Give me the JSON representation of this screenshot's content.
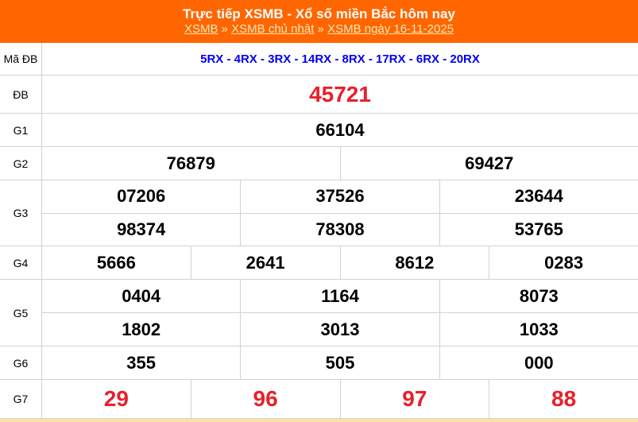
{
  "header": {
    "title": "Trực tiếp XSMB - Xổ số miền Bắc hôm nay",
    "breadcrumb": [
      "XSMB",
      "XSMB chủ nhật",
      "XSMB ngày 16-11-2025"
    ],
    "separator": "»"
  },
  "rows": {
    "ma_db": {
      "label": "Mã ĐB",
      "value": "5RX - 4RX - 3RX - 14RX - 8RX - 17RX - 6RX - 20RX"
    },
    "db": {
      "label": "ĐB",
      "values": [
        "45721"
      ]
    },
    "g1": {
      "label": "G1",
      "values": [
        "66104"
      ]
    },
    "g2": {
      "label": "G2",
      "values": [
        "76879",
        "69427"
      ]
    },
    "g3": {
      "label": "G3",
      "values": [
        "07206",
        "37526",
        "23644",
        "98374",
        "78308",
        "53765"
      ]
    },
    "g4": {
      "label": "G4",
      "values": [
        "5666",
        "2641",
        "8612",
        "0283"
      ]
    },
    "g5": {
      "label": "G5",
      "values": [
        "0404",
        "1164",
        "8073",
        "1802",
        "3013",
        "1033"
      ]
    },
    "g6": {
      "label": "G6",
      "values": [
        "355",
        "505",
        "000"
      ]
    },
    "g7": {
      "label": "G7",
      "values": [
        "29",
        "96",
        "97",
        "88"
      ]
    }
  },
  "colors": {
    "header": "#ff6600",
    "highlight": "#e8202a",
    "code": "#0000ee"
  }
}
